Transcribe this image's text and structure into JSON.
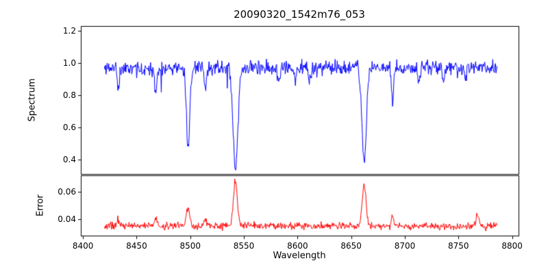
{
  "title": "20090320_1542m76_053",
  "xlabel": "Wavelength",
  "ylabel_top": "Spectrum",
  "ylabel_bottom": "Error",
  "chart_data": {
    "type": "line",
    "title": "20090320_1542m76_053",
    "xlabel": "Wavelength",
    "x_range": [
      8420,
      8786
    ],
    "xlim": [
      8398,
      8806
    ],
    "sample_step": 0.5,
    "seed": 11,
    "xticks": [
      8400,
      8450,
      8500,
      8550,
      8600,
      8650,
      8700,
      8750,
      8800
    ],
    "xtick_labels": [
      "8400",
      "8450",
      "8500",
      "8550",
      "8600",
      "8650",
      "8700",
      "8750",
      "8800"
    ],
    "grid": false,
    "legend": "none",
    "panels": [
      {
        "name": "spectrum",
        "ylabel": "Spectrum",
        "color": "#0000ff",
        "ylim": [
          0.31,
          1.23
        ],
        "yticks": [
          0.4,
          0.6,
          0.8,
          1.0,
          1.2
        ],
        "ytick_labels": [
          "0.4",
          "0.6",
          "0.8",
          "1.0",
          "1.2"
        ],
        "continuum": 0.97,
        "noise_sigma": 0.023,
        "absorption_lines": [
          {
            "center": 8498.0,
            "depth": 0.48,
            "sigma": 1.6
          },
          {
            "center": 8542.1,
            "depth": 0.63,
            "sigma": 2.2
          },
          {
            "center": 8662.1,
            "depth": 0.6,
            "sigma": 2.0
          },
          {
            "center": 8433.0,
            "depth": 0.13,
            "sigma": 1.0
          },
          {
            "center": 8468.0,
            "depth": 0.16,
            "sigma": 1.0
          },
          {
            "center": 8514.0,
            "depth": 0.15,
            "sigma": 0.9
          },
          {
            "center": 8582.0,
            "depth": 0.1,
            "sigma": 0.9
          },
          {
            "center": 8598.0,
            "depth": 0.09,
            "sigma": 0.8
          },
          {
            "center": 8611.0,
            "depth": 0.1,
            "sigma": 0.8
          },
          {
            "center": 8688.5,
            "depth": 0.22,
            "sigma": 1.0
          },
          {
            "center": 8713.0,
            "depth": 0.09,
            "sigma": 0.8
          },
          {
            "center": 8736.0,
            "depth": 0.09,
            "sigma": 0.8
          },
          {
            "center": 8757.0,
            "depth": 0.08,
            "sigma": 0.8
          }
        ]
      },
      {
        "name": "error",
        "ylabel": "Error",
        "color": "#ff0000",
        "ylim": [
          0.028,
          0.072
        ],
        "yticks": [
          0.04,
          0.06
        ],
        "ytick_labels": [
          "0.04",
          "0.06"
        ],
        "baseline": 0.035,
        "noise_sigma": 0.0013,
        "peaks": [
          {
            "center": 8498.0,
            "height": 0.013,
            "sigma": 1.6
          },
          {
            "center": 8542.1,
            "height": 0.034,
            "sigma": 1.8
          },
          {
            "center": 8662.1,
            "height": 0.031,
            "sigma": 1.8
          },
          {
            "center": 8433.0,
            "height": 0.004,
            "sigma": 1.2
          },
          {
            "center": 8468.0,
            "height": 0.007,
            "sigma": 1.2
          },
          {
            "center": 8514.0,
            "height": 0.006,
            "sigma": 1.0
          },
          {
            "center": 8688.5,
            "height": 0.007,
            "sigma": 1.0
          },
          {
            "center": 8768.0,
            "height": 0.008,
            "sigma": 1.5
          }
        ]
      }
    ]
  }
}
